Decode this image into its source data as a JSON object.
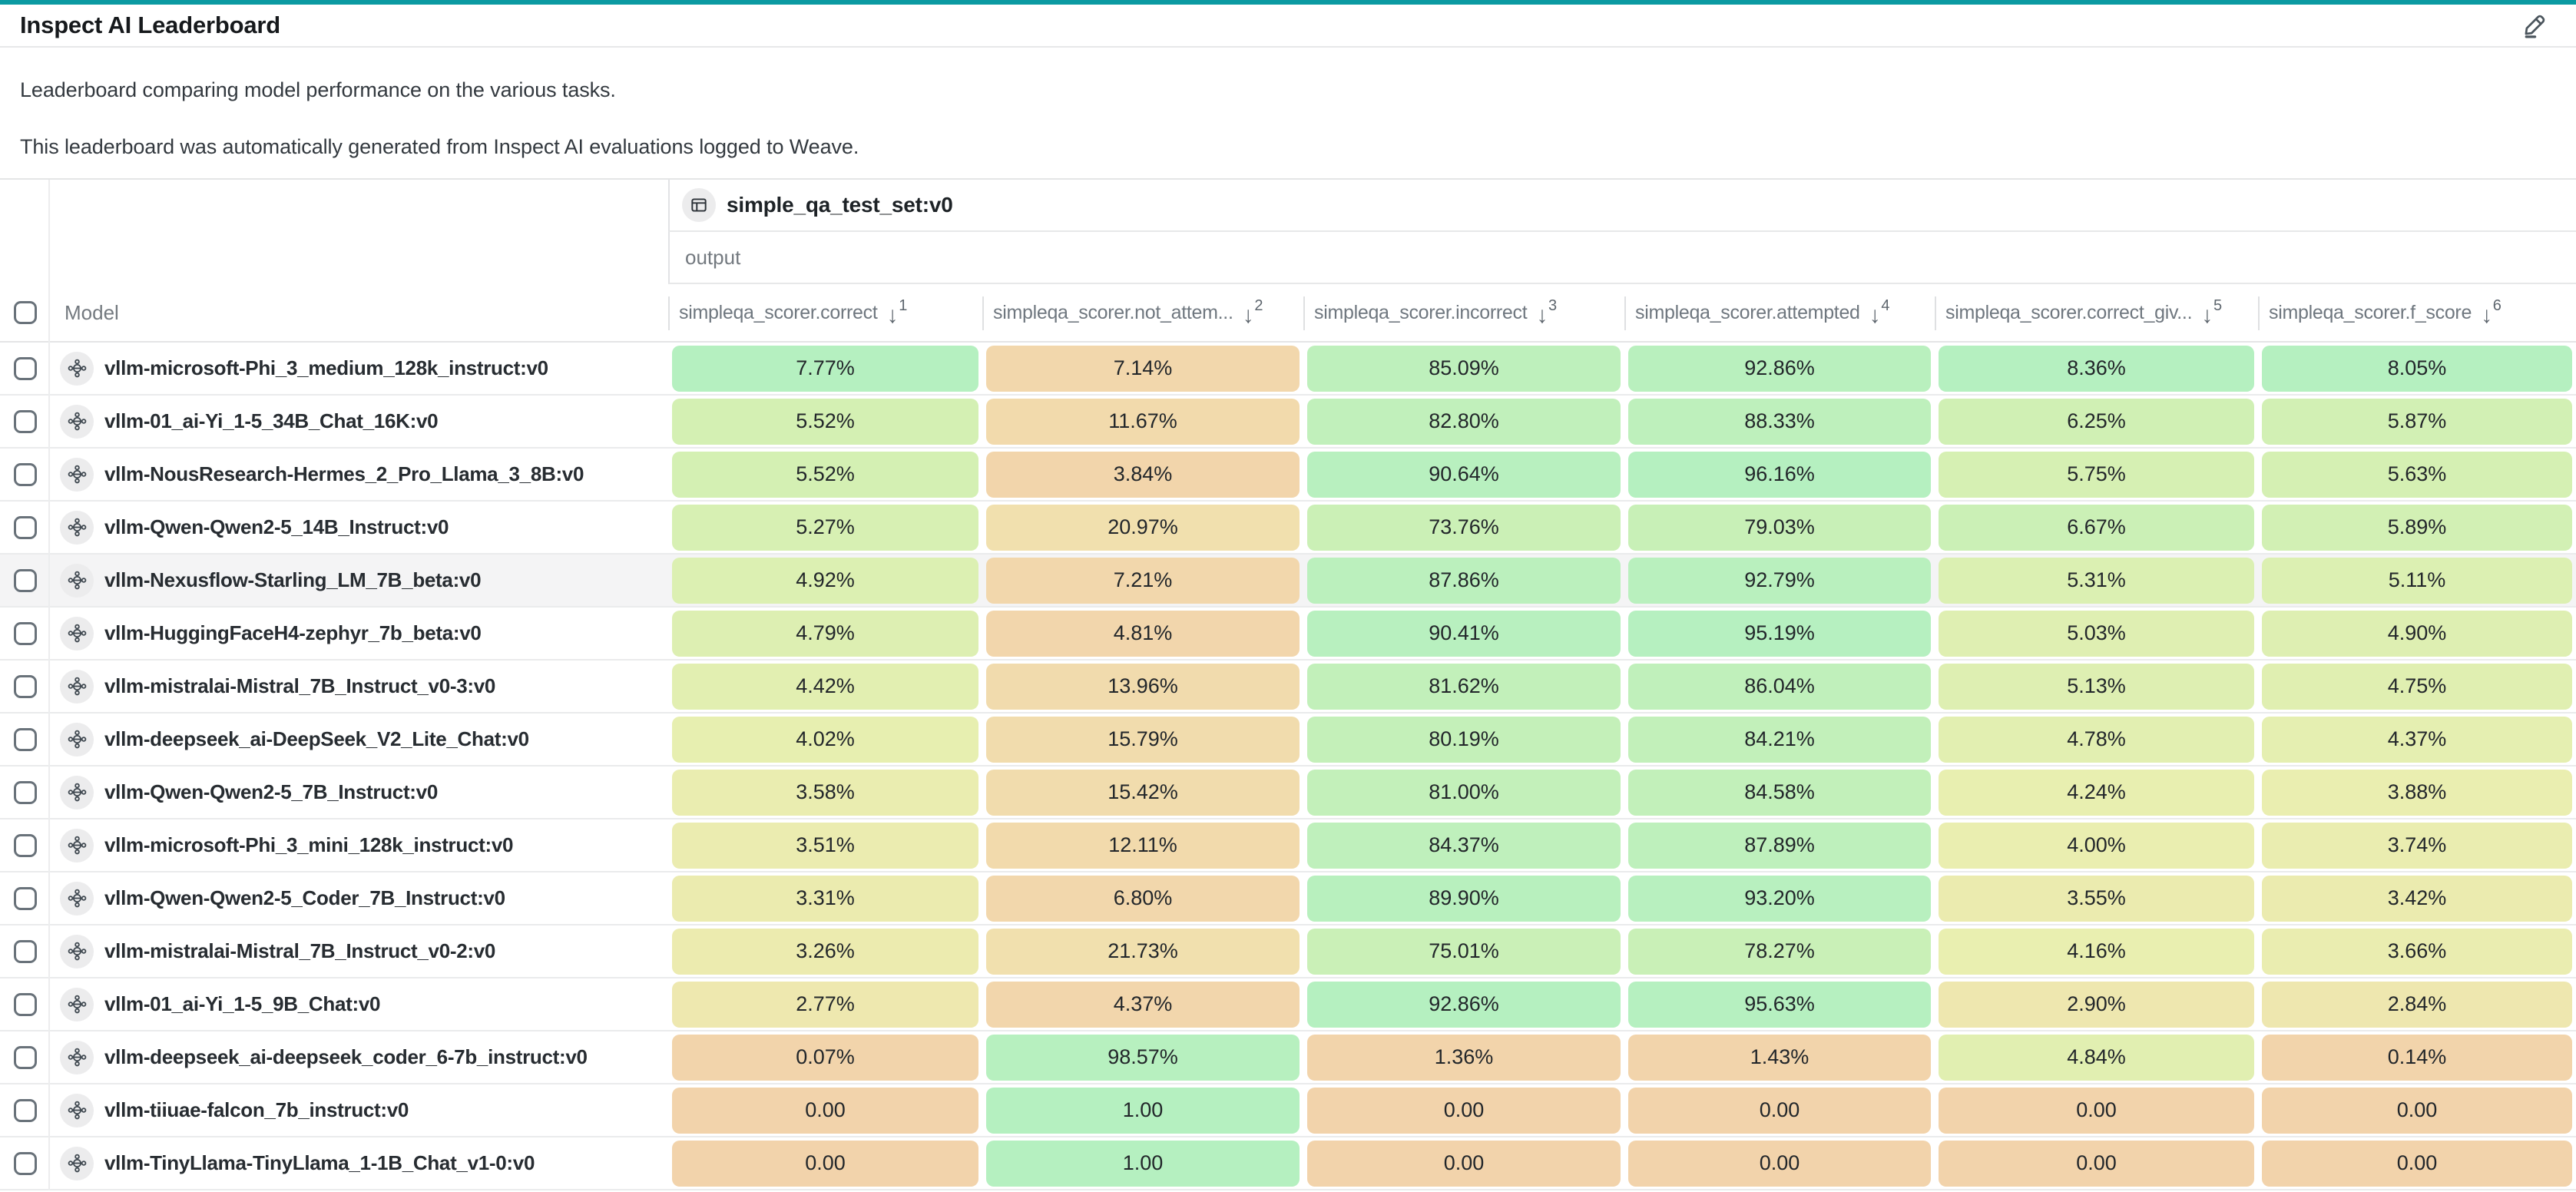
{
  "page": {
    "title": "Inspect AI Leaderboard",
    "description_1": "Leaderboard comparing model performance on the various tasks.",
    "description_2": "This leaderboard was automatically generated from Inspect AI evaluations logged to Weave."
  },
  "icons": {
    "edit": "pencil-icon",
    "dataset": "table-icon",
    "model": "model-node-icon",
    "sort": "arrow-down-icon",
    "select": "checkbox"
  },
  "table": {
    "dataset_group": {
      "label": "simple_qa_test_set:v0",
      "sublabel": "output"
    },
    "model_column_label": "Model",
    "columns": [
      {
        "label": "simpleqa_scorer.correct",
        "sort_rank": "1"
      },
      {
        "label": "simpleqa_scorer.not_attem...",
        "sort_rank": "2"
      },
      {
        "label": "simpleqa_scorer.incorrect",
        "sort_rank": "3"
      },
      {
        "label": "simpleqa_scorer.attempted",
        "sort_rank": "4"
      },
      {
        "label": "simpleqa_scorer.correct_giv...",
        "sort_rank": "5"
      },
      {
        "label": "simpleqa_scorer.f_score",
        "sort_rank": "6"
      }
    ],
    "highlighted_row_index": 4,
    "rows": [
      {
        "model": "vllm-microsoft-Phi_3_medium_128k_instruct:v0",
        "cells": [
          "7.77%",
          "7.14%",
          "85.09%",
          "92.86%",
          "8.36%",
          "8.05%"
        ]
      },
      {
        "model": "vllm-01_ai-Yi_1-5_34B_Chat_16K:v0",
        "cells": [
          "5.52%",
          "11.67%",
          "82.80%",
          "88.33%",
          "6.25%",
          "5.87%"
        ]
      },
      {
        "model": "vllm-NousResearch-Hermes_2_Pro_Llama_3_8B:v0",
        "cells": [
          "5.52%",
          "3.84%",
          "90.64%",
          "96.16%",
          "5.75%",
          "5.63%"
        ]
      },
      {
        "model": "vllm-Qwen-Qwen2-5_14B_Instruct:v0",
        "cells": [
          "5.27%",
          "20.97%",
          "73.76%",
          "79.03%",
          "6.67%",
          "5.89%"
        ]
      },
      {
        "model": "vllm-Nexusflow-Starling_LM_7B_beta:v0",
        "cells": [
          "4.92%",
          "7.21%",
          "87.86%",
          "92.79%",
          "5.31%",
          "5.11%"
        ]
      },
      {
        "model": "vllm-HuggingFaceH4-zephyr_7b_beta:v0",
        "cells": [
          "4.79%",
          "4.81%",
          "90.41%",
          "95.19%",
          "5.03%",
          "4.90%"
        ]
      },
      {
        "model": "vllm-mistralai-Mistral_7B_Instruct_v0-3:v0",
        "cells": [
          "4.42%",
          "13.96%",
          "81.62%",
          "86.04%",
          "5.13%",
          "4.75%"
        ]
      },
      {
        "model": "vllm-deepseek_ai-DeepSeek_V2_Lite_Chat:v0",
        "cells": [
          "4.02%",
          "15.79%",
          "80.19%",
          "84.21%",
          "4.78%",
          "4.37%"
        ]
      },
      {
        "model": "vllm-Qwen-Qwen2-5_7B_Instruct:v0",
        "cells": [
          "3.58%",
          "15.42%",
          "81.00%",
          "84.58%",
          "4.24%",
          "3.88%"
        ]
      },
      {
        "model": "vllm-microsoft-Phi_3_mini_128k_instruct:v0",
        "cells": [
          "3.51%",
          "12.11%",
          "84.37%",
          "87.89%",
          "4.00%",
          "3.74%"
        ]
      },
      {
        "model": "vllm-Qwen-Qwen2-5_Coder_7B_Instruct:v0",
        "cells": [
          "3.31%",
          "6.80%",
          "89.90%",
          "93.20%",
          "3.55%",
          "3.42%"
        ]
      },
      {
        "model": "vllm-mistralai-Mistral_7B_Instruct_v0-2:v0",
        "cells": [
          "3.26%",
          "21.73%",
          "75.01%",
          "78.27%",
          "4.16%",
          "3.66%"
        ]
      },
      {
        "model": "vllm-01_ai-Yi_1-5_9B_Chat:v0",
        "cells": [
          "2.77%",
          "4.37%",
          "92.86%",
          "95.63%",
          "2.90%",
          "2.84%"
        ]
      },
      {
        "model": "vllm-deepseek_ai-deepseek_coder_6-7b_instruct:v0",
        "cells": [
          "0.07%",
          "98.57%",
          "1.36%",
          "1.43%",
          "4.84%",
          "0.14%"
        ]
      },
      {
        "model": "vllm-tiiuae-falcon_7b_instruct:v0",
        "cells": [
          "0.00",
          "1.00",
          "0.00",
          "0.00",
          "0.00",
          "0.00"
        ]
      },
      {
        "model": "vllm-TinyLlama-TinyLlama_1-1B_Chat_v1-0:v0",
        "cells": [
          "0.00",
          "1.00",
          "0.00",
          "0.00",
          "0.00",
          "0.00"
        ]
      }
    ]
  },
  "colors": {
    "accent_top_bar": "#0b9aa2",
    "row_hover": "#f4f4f5",
    "border_light": "#e7e8e9",
    "header_text": "#6f777f",
    "heat_scale": [
      {
        "t": 0.0,
        "color": "#f2d3ab"
      },
      {
        "t": 0.25,
        "color": "#f1e2ae"
      },
      {
        "t": 0.5,
        "color": "#e9efb0"
      },
      {
        "t": 0.75,
        "color": "#d0f0b4"
      },
      {
        "t": 1.0,
        "color": "#b5f0c0"
      }
    ]
  }
}
